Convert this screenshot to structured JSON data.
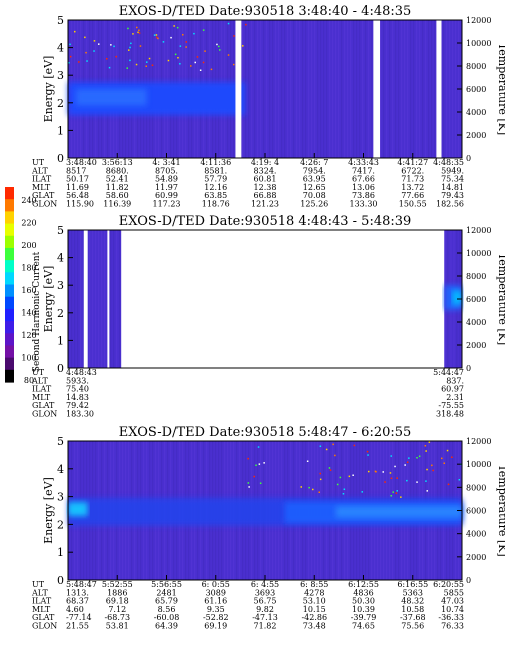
{
  "colorbar": {
    "label": "Second Harmonic Current",
    "ticks": [
      "240",
      "220",
      "200",
      "180",
      "160",
      "140",
      "120",
      "100",
      "80"
    ],
    "colors": [
      "#ff2a00",
      "#ff7a00",
      "#ffd200",
      "#e8ff00",
      "#9cff00",
      "#3cff3c",
      "#00ffc8",
      "#00d8ff",
      "#0090ff",
      "#0048ff",
      "#2020ff",
      "#3e1de8",
      "#5d14c8",
      "#7410a6",
      "#4a0a6e",
      "#000000"
    ]
  },
  "chart_data": [
    {
      "type": "heatmap",
      "title": "EXOS-D/TED   Date:930518  3:48:40 - 4:48:35",
      "ylabel": "Energy [eV]",
      "ylabel_right": "Temperature [K]",
      "ylim": [
        0,
        5
      ],
      "ylim_right": [
        0,
        12000
      ],
      "yticks": [
        "0",
        "1",
        "2",
        "3",
        "4",
        "5"
      ],
      "yticks_right": [
        "0",
        "2000",
        "4000",
        "6000",
        "8000",
        "10000",
        "12000"
      ],
      "gaps": [
        [
          0.425,
          0.44
        ],
        [
          0.775,
          0.792
        ],
        [
          0.935,
          0.948
        ]
      ],
      "bands": [
        {
          "x0": 0.0,
          "x1": 0.45,
          "y0": 1.55,
          "y1": 2.75,
          "color": "#1a4bff",
          "opacity": 0.95
        },
        {
          "x0": 0.02,
          "x1": 0.2,
          "y0": 1.9,
          "y1": 2.5,
          "color": "#2a6dff",
          "opacity": 0.9
        }
      ],
      "speckle_region": [
        0.0,
        0.45,
        3.2,
        4.9
      ],
      "rows": {
        "labels": [
          "UT",
          "ALT",
          "ILAT",
          "MLT",
          "GLAT",
          "GLON"
        ],
        "columns": [
          [
            "3:48:40",
            "8517",
            "50.17",
            "11.69",
            "56.48",
            "115.90"
          ],
          [
            "3:56:13",
            "8680.",
            "52.41",
            "11.82",
            "58.60",
            "116.39"
          ],
          [
            "4: 3:41",
            "8705.",
            "54.89",
            "11.97",
            "60.99",
            "117.23"
          ],
          [
            "4:11:36",
            "8581.",
            "57.79",
            "12.16",
            "63.85",
            "118.76"
          ],
          [
            "4:19: 4",
            "8324.",
            "60.81",
            "12.38",
            "66.88",
            "121.23"
          ],
          [
            "4:26: 7",
            "7954.",
            "63.95",
            "12.65",
            "70.08",
            "125.26"
          ],
          [
            "4:33:43",
            "7417.",
            "67.66",
            "13.06",
            "73.86",
            "133.30"
          ],
          [
            "4:41:27",
            "6722.",
            "71.73",
            "13.72",
            "77.66",
            "150.55"
          ],
          [
            "4:48:35",
            "5949.",
            "75.34",
            "14.81",
            "79.43",
            "182.56"
          ]
        ]
      }
    },
    {
      "type": "heatmap",
      "title": "EXOS-D/TED   Date:930518  4:48:43 - 5:48:39",
      "ylabel": "Energy [eV]",
      "ylabel_right": "Temperature [K]",
      "ylim": [
        0,
        5
      ],
      "ylim_right": [
        0,
        12000
      ],
      "yticks": [
        "0",
        "1",
        "2",
        "3",
        "4",
        "5"
      ],
      "yticks_right": [
        "0",
        "2000",
        "4000",
        "6000",
        "8000",
        "10000",
        "12000"
      ],
      "data_ranges": [
        [
          0.0,
          0.135
        ],
        [
          0.955,
          1.0
        ]
      ],
      "gaps": [
        [
          0.04,
          0.05
        ],
        [
          0.1,
          0.105
        ]
      ],
      "bands": [
        {
          "x0": 0.955,
          "x1": 1.0,
          "y0": 2.1,
          "y1": 3.0,
          "color": "#1a6bff",
          "opacity": 0.9
        },
        {
          "x0": 0.975,
          "x1": 1.0,
          "y0": 2.3,
          "y1": 2.8,
          "color": "#00c8ff",
          "opacity": 0.85
        }
      ],
      "speckle_region": [
        0.0,
        0.0,
        0.0,
        0.0
      ],
      "rows": {
        "labels": [
          "UT",
          "ALT",
          "ILAT",
          "MLT",
          "GLAT",
          "GLON"
        ],
        "columns": [
          [
            "4:48:43",
            "5933.",
            "75.40",
            "14.83",
            "79.42",
            "183.30"
          ],
          [
            "5:44:47",
            "837.",
            "60.97",
            "2.31",
            "-75.55",
            "318.48"
          ]
        ]
      }
    },
    {
      "type": "heatmap",
      "title": "EXOS-D/TED   Date:930518  5:48:47 - 6:20:55",
      "ylabel": "Energy [eV]",
      "ylabel_right": "Temperature [K]",
      "ylim": [
        0,
        5
      ],
      "ylim_right": [
        0,
        12000
      ],
      "yticks": [
        "0",
        "1",
        "2",
        "3",
        "4",
        "5"
      ],
      "yticks_right": [
        "0",
        "2000",
        "4000",
        "6000",
        "8000",
        "10000",
        "12000"
      ],
      "gaps": [],
      "bands": [
        {
          "x0": 0.0,
          "x1": 1.0,
          "y0": 1.95,
          "y1": 2.95,
          "color": "#2244ee",
          "opacity": 0.85
        },
        {
          "x0": 0.55,
          "x1": 1.0,
          "y0": 2.05,
          "y1": 2.8,
          "color": "#1a60ff",
          "opacity": 0.9
        },
        {
          "x0": 0.0,
          "x1": 0.05,
          "y0": 2.3,
          "y1": 2.8,
          "color": "#19c8ff",
          "opacity": 0.95
        },
        {
          "x0": 0.68,
          "x1": 1.0,
          "y0": 2.25,
          "y1": 2.65,
          "color": "#2a88ff",
          "opacity": 0.9
        }
      ],
      "speckle_region": [
        0.45,
        1.0,
        3.0,
        5.0
      ],
      "rows": {
        "labels": [
          "UT",
          "ALT",
          "ILAT",
          "MLT",
          "GLAT",
          "GLON"
        ],
        "columns": [
          [
            "5:48:47",
            "1313.",
            "68.37",
            "4.60",
            "-77.14",
            "21.55"
          ],
          [
            "5:52:55",
            "1886",
            "69.18",
            "7.12",
            "-68.73",
            "53.81"
          ],
          [
            "5:56:55",
            "2481",
            "65.79",
            "8.56",
            "-60.08",
            "64.39"
          ],
          [
            "6: 0:55",
            "3089",
            "61.16",
            "9.35",
            "-52.82",
            "69.19"
          ],
          [
            "6: 4:55",
            "3693",
            "56.75",
            "9.82",
            "-47.13",
            "71.82"
          ],
          [
            "6: 8:55",
            "4278",
            "53.10",
            "10.15",
            "-42.86",
            "73.48"
          ],
          [
            "6:12:55",
            "4836",
            "50.30",
            "10.39",
            "-39.79",
            "74.65"
          ],
          [
            "6:16:55",
            "5363",
            "48.32",
            "10.58",
            "-37.68",
            "75.56"
          ],
          [
            "6:20:55",
            "5855",
            "47.03",
            "10.74",
            "-36.33",
            "76.33"
          ]
        ]
      }
    }
  ]
}
